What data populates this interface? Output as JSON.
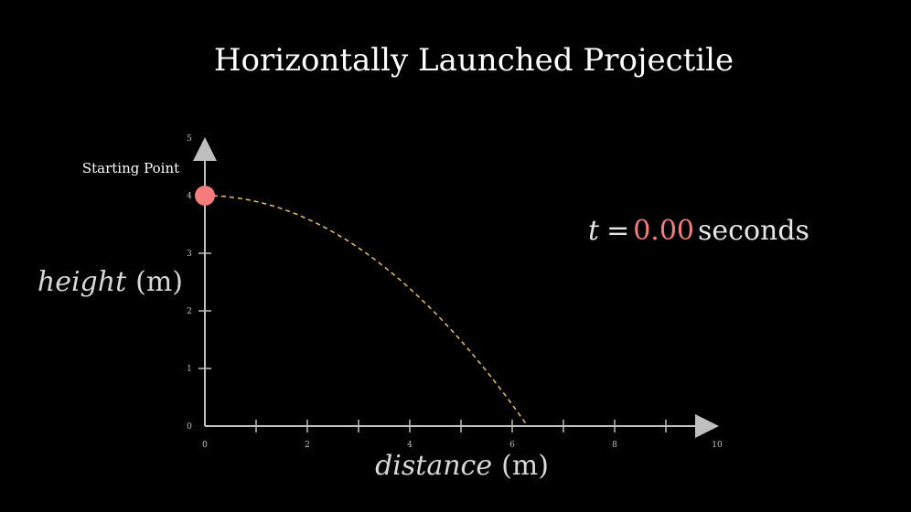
{
  "title": "Horizontally Launched Projectile",
  "colors": {
    "background": "#000000",
    "axis": "#bfbfbf",
    "trajectory": "#e8c35a",
    "ball": "#f47c7c",
    "time_value": "#f47c7c"
  },
  "axes": {
    "x_label_var": "distance",
    "x_label_unit": "(m)",
    "y_label_var": "height",
    "y_label_unit": "(m)",
    "x_range": [
      0,
      10
    ],
    "y_range": [
      0,
      5
    ],
    "x_tick_labels": [
      "0",
      "2",
      "4",
      "6",
      "8",
      "10"
    ],
    "y_tick_labels": [
      "0",
      "1",
      "2",
      "3",
      "4",
      "5"
    ]
  },
  "start_point": {
    "label": "Starting Point",
    "x": 0,
    "y": 4
  },
  "trajectory": {
    "landing_x": 6.3
  },
  "time": {
    "var": "t",
    "equals": "=",
    "value": "0.00",
    "unit": "seconds"
  }
}
